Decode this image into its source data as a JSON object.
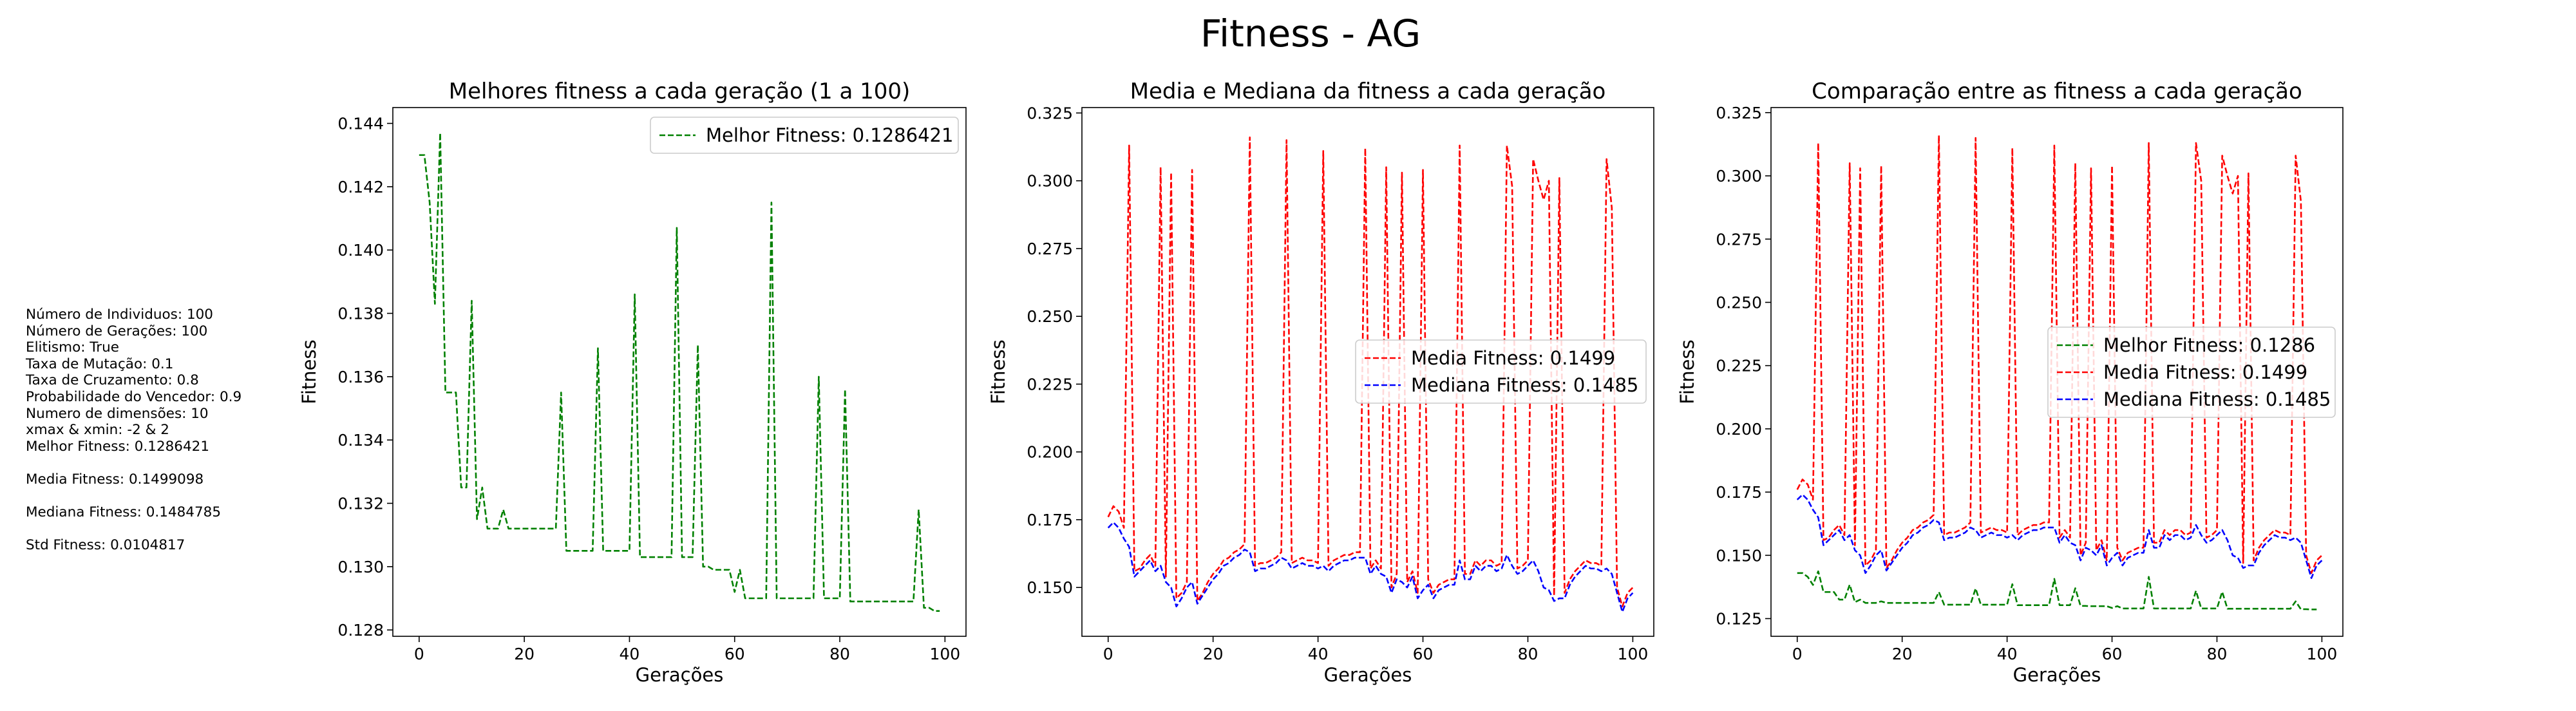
{
  "figure": {
    "title": "Fitness - AG"
  },
  "info_panel": {
    "lines": [
      "Número de Individuos: 100",
      "Número de Gerações: 100",
      "Elitismo: True",
      "Taxa de Mutação: 0.1",
      "Taxa de Cruzamento: 0.8",
      "Probabilidade do Vencedor: 0.9",
      "Numero de dimensões: 10",
      "xmax & xmin: -2 & 2",
      "Melhor Fitness: 0.1286421",
      "",
      "Media Fitness: 0.1499098",
      "",
      "Mediana Fitness: 0.1484785",
      "",
      "Std Fitness: 0.0104817"
    ]
  },
  "colors": {
    "best": "#008000",
    "mean": "#ff0000",
    "median": "#0000ff",
    "axis": "#000000"
  },
  "chart_data": [
    {
      "type": "line",
      "title": "Melhores fitness a cada geração (1 a 100)",
      "xlabel": "Gerações",
      "ylabel": "Fitness",
      "xlim": [
        -5,
        104
      ],
      "ylim": [
        0.1278,
        0.1445
      ],
      "xticks": [
        0,
        20,
        40,
        60,
        80,
        100
      ],
      "yticks": [
        0.128,
        0.13,
        0.132,
        0.134,
        0.136,
        0.138,
        0.14,
        0.142,
        0.144
      ],
      "ytick_labels": [
        "0.128",
        "0.130",
        "0.132",
        "0.134",
        "0.136",
        "0.138",
        "0.140",
        "0.142",
        "0.144"
      ],
      "grid": false,
      "legend": "top-right",
      "series": [
        {
          "name": "Melhor Fitness: 0.1286421",
          "color": "#008000",
          "key": "best"
        }
      ]
    },
    {
      "type": "line",
      "title": "Media e Mediana da fitness a cada geração",
      "xlabel": "Gerações",
      "ylabel": "Fitness",
      "xlim": [
        -5,
        104
      ],
      "ylim": [
        0.132,
        0.327
      ],
      "xticks": [
        0,
        20,
        40,
        60,
        80,
        100
      ],
      "yticks": [
        0.15,
        0.175,
        0.2,
        0.225,
        0.25,
        0.275,
        0.3,
        0.325
      ],
      "ytick_labels": [
        "0.150",
        "0.175",
        "0.200",
        "0.225",
        "0.250",
        "0.275",
        "0.300",
        "0.325"
      ],
      "grid": false,
      "legend": "center-right",
      "series": [
        {
          "name": "Media Fitness: 0.1499",
          "color": "#ff0000",
          "key": "mean"
        },
        {
          "name": "Mediana Fitness: 0.1485",
          "color": "#0000ff",
          "key": "median"
        }
      ]
    },
    {
      "type": "line",
      "title": "Comparação entre as fitness a cada geração",
      "xlabel": "Gerações",
      "ylabel": "Fitness",
      "xlim": [
        -5,
        104
      ],
      "ylim": [
        0.118,
        0.327
      ],
      "xticks": [
        0,
        20,
        40,
        60,
        80,
        100
      ],
      "yticks": [
        0.125,
        0.15,
        0.175,
        0.2,
        0.225,
        0.25,
        0.275,
        0.3,
        0.325
      ],
      "ytick_labels": [
        "0.125",
        "0.150",
        "0.175",
        "0.200",
        "0.225",
        "0.250",
        "0.275",
        "0.300",
        "0.325"
      ],
      "grid": false,
      "legend": "center-right",
      "series": [
        {
          "name": "Melhor Fitness: 0.1286",
          "color": "#008000",
          "key": "best"
        },
        {
          "name": "Media Fitness: 0.1499",
          "color": "#ff0000",
          "key": "mean"
        },
        {
          "name": "Mediana Fitness: 0.1485",
          "color": "#0000ff",
          "key": "median"
        }
      ]
    }
  ],
  "series_values": {
    "best": [
      0.143,
      0.143,
      0.1415,
      0.1383,
      0.1437,
      0.1355,
      0.1355,
      0.1355,
      0.1325,
      0.1325,
      0.1384,
      0.1315,
      0.1325,
      0.1312,
      0.1312,
      0.1312,
      0.1318,
      0.1312,
      0.1312,
      0.1312,
      0.1312,
      0.1312,
      0.1312,
      0.1312,
      0.1312,
      0.1312,
      0.1312,
      0.1355,
      0.1305,
      0.1305,
      0.1305,
      0.1305,
      0.1305,
      0.1305,
      0.1369,
      0.1305,
      0.1305,
      0.1305,
      0.1305,
      0.1305,
      0.1305,
      0.1386,
      0.1303,
      0.1303,
      0.1303,
      0.1303,
      0.1303,
      0.1303,
      0.1303,
      0.1407,
      0.1303,
      0.1303,
      0.1303,
      0.137,
      0.13,
      0.13,
      0.1299,
      0.1299,
      0.1299,
      0.1299,
      0.1292,
      0.1299,
      0.129,
      0.129,
      0.129,
      0.129,
      0.129,
      0.1415,
      0.129,
      0.129,
      0.129,
      0.129,
      0.129,
      0.129,
      0.129,
      0.129,
      0.136,
      0.129,
      0.129,
      0.129,
      0.129,
      0.1356,
      0.1289,
      0.1289,
      0.1289,
      0.1289,
      0.1289,
      0.1289,
      0.1289,
      0.1289,
      0.1289,
      0.1289,
      0.1289,
      0.1289,
      0.1289,
      0.1318,
      0.1287,
      0.1287,
      0.1286,
      0.1286
    ],
    "mean": [
      0.176,
      0.18,
      0.178,
      0.172,
      0.313,
      0.156,
      0.157,
      0.16,
      0.162,
      0.158,
      0.305,
      0.154,
      0.303,
      0.146,
      0.148,
      0.152,
      0.304,
      0.145,
      0.148,
      0.152,
      0.155,
      0.157,
      0.16,
      0.161,
      0.163,
      0.164,
      0.166,
      0.316,
      0.158,
      0.159,
      0.159,
      0.16,
      0.161,
      0.163,
      0.315,
      0.159,
      0.16,
      0.161,
      0.16,
      0.16,
      0.159,
      0.311,
      0.158,
      0.16,
      0.161,
      0.162,
      0.162,
      0.163,
      0.163,
      0.312,
      0.157,
      0.16,
      0.157,
      0.305,
      0.15,
      0.155,
      0.303,
      0.152,
      0.156,
      0.148,
      0.304,
      0.153,
      0.148,
      0.151,
      0.152,
      0.153,
      0.153,
      0.313,
      0.155,
      0.155,
      0.16,
      0.158,
      0.16,
      0.16,
      0.158,
      0.159,
      0.313,
      0.298,
      0.157,
      0.158,
      0.16,
      0.308,
      0.3,
      0.293,
      0.3,
      0.147,
      0.301,
      0.148,
      0.153,
      0.156,
      0.158,
      0.16,
      0.159,
      0.159,
      0.158,
      0.308,
      0.29,
      0.15,
      0.143,
      0.148,
      0.15
    ],
    "median": [
      0.172,
      0.174,
      0.172,
      0.168,
      0.165,
      0.154,
      0.156,
      0.158,
      0.16,
      0.156,
      0.158,
      0.152,
      0.15,
      0.143,
      0.146,
      0.15,
      0.152,
      0.144,
      0.147,
      0.15,
      0.153,
      0.155,
      0.158,
      0.159,
      0.161,
      0.162,
      0.164,
      0.163,
      0.156,
      0.157,
      0.157,
      0.158,
      0.159,
      0.161,
      0.16,
      0.157,
      0.158,
      0.159,
      0.158,
      0.158,
      0.157,
      0.158,
      0.156,
      0.158,
      0.159,
      0.16,
      0.16,
      0.161,
      0.161,
      0.161,
      0.155,
      0.158,
      0.155,
      0.154,
      0.148,
      0.153,
      0.152,
      0.15,
      0.154,
      0.146,
      0.149,
      0.151,
      0.146,
      0.149,
      0.15,
      0.151,
      0.151,
      0.16,
      0.153,
      0.153,
      0.158,
      0.156,
      0.158,
      0.158,
      0.156,
      0.157,
      0.162,
      0.158,
      0.155,
      0.156,
      0.158,
      0.16,
      0.156,
      0.15,
      0.149,
      0.145,
      0.146,
      0.146,
      0.151,
      0.154,
      0.156,
      0.158,
      0.157,
      0.157,
      0.156,
      0.157,
      0.155,
      0.148,
      0.141,
      0.146,
      0.148
    ]
  }
}
